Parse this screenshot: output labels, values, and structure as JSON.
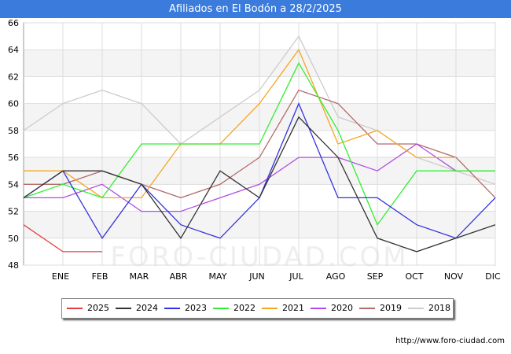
{
  "header": {
    "title": "Afiliados en El Bodón a 28/2/2025"
  },
  "watermark": "FORO-CIUDAD.COM",
  "source_text": "http://www.foro-ciudad.com",
  "chart_data": {
    "type": "line",
    "title": "Afiliados en El Bodón a 28/2/2025",
    "xlabel": "",
    "ylabel": "",
    "categories": [
      "",
      "ENE",
      "FEB",
      "MAR",
      "ABR",
      "MAY",
      "JUN",
      "JUL",
      "AGO",
      "SEP",
      "OCT",
      "NOV",
      "DIC"
    ],
    "ylim": [
      48,
      66
    ],
    "yticks": [
      48,
      50,
      52,
      54,
      56,
      58,
      60,
      62,
      64,
      66
    ],
    "grid": true,
    "legend_position": "bottom",
    "series": [
      {
        "name": "2018",
        "color": "#cccccc",
        "values": [
          58,
          60,
          61,
          60,
          57,
          59,
          61,
          65,
          59,
          58,
          56,
          55,
          54
        ]
      },
      {
        "name": "2019",
        "color": "#b36b6b",
        "values": [
          54,
          54,
          55,
          54,
          53,
          54,
          56,
          61,
          60,
          57,
          57,
          56,
          53
        ]
      },
      {
        "name": "2020",
        "color": "#b44be6",
        "values": [
          53,
          53,
          54,
          52,
          52,
          53,
          54,
          56,
          56,
          55,
          57,
          55,
          55
        ]
      },
      {
        "name": "2021",
        "color": "#f5a623",
        "values": [
          55,
          55,
          53,
          53,
          57,
          57,
          60,
          64,
          57,
          58,
          56,
          56,
          null
        ]
      },
      {
        "name": "2022",
        "color": "#33ee33",
        "values": [
          53,
          54,
          53,
          57,
          57,
          57,
          57,
          63,
          58,
          51,
          55,
          55,
          55
        ]
      },
      {
        "name": "2023",
        "color": "#3333dd",
        "values": [
          53,
          55,
          50,
          54,
          51,
          50,
          53,
          60,
          53,
          53,
          51,
          50,
          53
        ]
      },
      {
        "name": "2024",
        "color": "#333333",
        "values": [
          53,
          55,
          55,
          54,
          50,
          55,
          53,
          59,
          56,
          50,
          49,
          50,
          51
        ]
      },
      {
        "name": "2025",
        "color": "#e04040",
        "values": [
          51,
          49,
          49,
          null,
          null,
          null,
          null,
          null,
          null,
          null,
          null,
          null,
          null
        ]
      }
    ],
    "legend_order": [
      "2025",
      "2024",
      "2023",
      "2022",
      "2021",
      "2020",
      "2019",
      "2018"
    ]
  }
}
